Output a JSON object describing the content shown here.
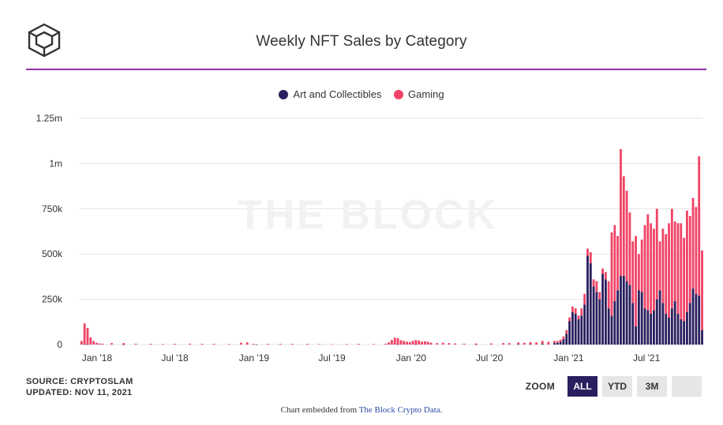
{
  "title": "Weekly NFT Sales by Category",
  "watermark": "THE BLOCK",
  "logo_icon": "cube-logo-icon",
  "source": {
    "source_line": "SOURCE: CRYPTOSLAM",
    "updated_line": "UPDATED: NOV 11, 2021"
  },
  "zoom": {
    "label": "ZOOM",
    "buttons": [
      "ALL",
      "YTD",
      "3M",
      ""
    ],
    "active": "ALL"
  },
  "embed": {
    "prefix": "Chart embedded from ",
    "link_text": "The Block Crypto Data",
    "suffix": "."
  },
  "colors": {
    "art": "#2a1f5e",
    "gaming": "#ef4466",
    "rule": "#8e2fa8",
    "grid": "#e6e6e6"
  },
  "chart_data": {
    "type": "bar",
    "stacked": true,
    "title": "Weekly NFT Sales by Category",
    "legend_position": "top-center",
    "grid": true,
    "x_range": [
      "2017-11-20",
      "2021-11-08"
    ],
    "ylim": [
      0,
      1250000
    ],
    "y_ticks": [
      0,
      250000,
      500000,
      750000,
      1000000,
      1250000
    ],
    "y_tick_labels": [
      "0",
      "250k",
      "500k",
      "750k",
      "1m",
      "1.25m"
    ],
    "x_ticks": [
      "2018-01-01",
      "2018-07-01",
      "2019-01-01",
      "2019-07-01",
      "2020-01-01",
      "2020-07-01",
      "2021-01-01",
      "2021-07-01"
    ],
    "x_tick_labels": [
      "Jan '18",
      "Jul '18",
      "Jan '19",
      "Jul '19",
      "Jan '20",
      "Jul '20",
      "Jan '21",
      "Jul '21"
    ],
    "series": [
      {
        "name": "Art and Collectibles",
        "color": "#2a1f5e",
        "points": [
          [
            "2017-11-27",
            0
          ],
          [
            "2017-12-04",
            2000
          ],
          [
            "2017-12-11",
            1000
          ],
          [
            "2018-03-05",
            500
          ],
          [
            "2019-01-07",
            500
          ],
          [
            "2019-12-02",
            1000
          ],
          [
            "2020-01-13",
            1000
          ],
          [
            "2020-06-01",
            800
          ],
          [
            "2020-09-07",
            1500
          ],
          [
            "2020-10-05",
            2000
          ],
          [
            "2020-11-02",
            5000
          ],
          [
            "2020-11-30",
            8000
          ],
          [
            "2020-12-07",
            10000
          ],
          [
            "2020-12-14",
            15000
          ],
          [
            "2020-12-21",
            30000
          ],
          [
            "2020-12-28",
            60000
          ],
          [
            "2021-01-04",
            130000
          ],
          [
            "2021-01-11",
            180000
          ],
          [
            "2021-01-18",
            170000
          ],
          [
            "2021-01-25",
            140000
          ],
          [
            "2021-02-01",
            160000
          ],
          [
            "2021-02-08",
            220000
          ],
          [
            "2021-02-15",
            490000
          ],
          [
            "2021-02-22",
            450000
          ],
          [
            "2021-03-01",
            320000
          ],
          [
            "2021-03-08",
            290000
          ],
          [
            "2021-03-15",
            250000
          ],
          [
            "2021-03-22",
            390000
          ],
          [
            "2021-03-29",
            360000
          ],
          [
            "2021-04-05",
            200000
          ],
          [
            "2021-04-12",
            160000
          ],
          [
            "2021-04-19",
            240000
          ],
          [
            "2021-04-26",
            300000
          ],
          [
            "2021-05-03",
            380000
          ],
          [
            "2021-05-10",
            380000
          ],
          [
            "2021-05-17",
            350000
          ],
          [
            "2021-05-24",
            330000
          ],
          [
            "2021-05-31",
            230000
          ],
          [
            "2021-06-07",
            100000
          ],
          [
            "2021-06-14",
            300000
          ],
          [
            "2021-06-21",
            290000
          ],
          [
            "2021-06-28",
            200000
          ],
          [
            "2021-07-05",
            190000
          ],
          [
            "2021-07-12",
            170000
          ],
          [
            "2021-07-19",
            190000
          ],
          [
            "2021-07-26",
            250000
          ],
          [
            "2021-08-02",
            300000
          ],
          [
            "2021-08-09",
            230000
          ],
          [
            "2021-08-16",
            170000
          ],
          [
            "2021-08-23",
            150000
          ],
          [
            "2021-08-30",
            200000
          ],
          [
            "2021-09-06",
            240000
          ],
          [
            "2021-09-13",
            170000
          ],
          [
            "2021-09-20",
            140000
          ],
          [
            "2021-09-27",
            130000
          ],
          [
            "2021-10-04",
            180000
          ],
          [
            "2021-10-11",
            230000
          ],
          [
            "2021-10-18",
            310000
          ],
          [
            "2021-10-25",
            280000
          ],
          [
            "2021-11-01",
            270000
          ],
          [
            "2021-11-08",
            80000
          ]
        ]
      },
      {
        "name": "Gaming",
        "color": "#ef4466",
        "points": [
          [
            "2017-11-27",
            20000
          ],
          [
            "2017-12-04",
            115000
          ],
          [
            "2017-12-11",
            90000
          ],
          [
            "2017-12-18",
            40000
          ],
          [
            "2017-12-25",
            20000
          ],
          [
            "2018-01-01",
            10000
          ],
          [
            "2018-01-08",
            6000
          ],
          [
            "2018-01-15",
            5000
          ],
          [
            "2018-02-05",
            8000
          ],
          [
            "2018-03-05",
            8000
          ],
          [
            "2018-04-02",
            5000
          ],
          [
            "2018-05-07",
            4000
          ],
          [
            "2018-06-04",
            3000
          ],
          [
            "2018-07-02",
            4000
          ],
          [
            "2018-08-06",
            5000
          ],
          [
            "2018-09-03",
            4000
          ],
          [
            "2018-10-01",
            4000
          ],
          [
            "2018-11-05",
            3000
          ],
          [
            "2018-12-03",
            10000
          ],
          [
            "2018-12-17",
            12000
          ],
          [
            "2018-12-31",
            4000
          ],
          [
            "2019-02-04",
            4000
          ],
          [
            "2019-03-04",
            4000
          ],
          [
            "2019-04-01",
            4000
          ],
          [
            "2019-05-06",
            4000
          ],
          [
            "2019-06-03",
            3000
          ],
          [
            "2019-07-01",
            2000
          ],
          [
            "2019-08-05",
            3000
          ],
          [
            "2019-09-02",
            4000
          ],
          [
            "2019-10-07",
            3000
          ],
          [
            "2019-11-04",
            5000
          ],
          [
            "2019-11-11",
            12000
          ],
          [
            "2019-11-18",
            25000
          ],
          [
            "2019-11-25",
            38000
          ],
          [
            "2019-12-02",
            34000
          ],
          [
            "2019-12-09",
            24000
          ],
          [
            "2019-12-16",
            20000
          ],
          [
            "2019-12-23",
            16000
          ],
          [
            "2019-12-30",
            14000
          ],
          [
            "2020-01-06",
            20000
          ],
          [
            "2020-01-13",
            24000
          ],
          [
            "2020-01-20",
            22000
          ],
          [
            "2020-01-27",
            16000
          ],
          [
            "2020-02-03",
            18000
          ],
          [
            "2020-02-10",
            16000
          ],
          [
            "2020-02-17",
            10000
          ],
          [
            "2020-03-02",
            8000
          ],
          [
            "2020-03-16",
            10000
          ],
          [
            "2020-03-30",
            8000
          ],
          [
            "2020-04-13",
            6000
          ],
          [
            "2020-05-04",
            5000
          ],
          [
            "2020-06-01",
            5000
          ],
          [
            "2020-07-06",
            6000
          ],
          [
            "2020-08-03",
            8000
          ],
          [
            "2020-08-17",
            8000
          ],
          [
            "2020-09-07",
            10000
          ],
          [
            "2020-09-21",
            10000
          ],
          [
            "2020-10-05",
            12000
          ],
          [
            "2020-10-19",
            12000
          ],
          [
            "2020-11-02",
            15000
          ],
          [
            "2020-11-16",
            15000
          ],
          [
            "2020-11-30",
            12000
          ],
          [
            "2020-12-07",
            10000
          ],
          [
            "2020-12-14",
            12000
          ],
          [
            "2020-12-21",
            15000
          ],
          [
            "2020-12-28",
            20000
          ],
          [
            "2021-01-04",
            20000
          ],
          [
            "2021-01-11",
            30000
          ],
          [
            "2021-01-18",
            30000
          ],
          [
            "2021-01-25",
            20000
          ],
          [
            "2021-02-01",
            40000
          ],
          [
            "2021-02-08",
            60000
          ],
          [
            "2021-02-15",
            40000
          ],
          [
            "2021-02-22",
            60000
          ],
          [
            "2021-03-01",
            40000
          ],
          [
            "2021-03-08",
            60000
          ],
          [
            "2021-03-15",
            40000
          ],
          [
            "2021-03-22",
            30000
          ],
          [
            "2021-03-29",
            40000
          ],
          [
            "2021-04-05",
            150000
          ],
          [
            "2021-04-12",
            460000
          ],
          [
            "2021-04-19",
            420000
          ],
          [
            "2021-04-26",
            300000
          ],
          [
            "2021-05-03",
            700000
          ],
          [
            "2021-05-10",
            550000
          ],
          [
            "2021-05-17",
            500000
          ],
          [
            "2021-05-24",
            400000
          ],
          [
            "2021-05-31",
            340000
          ],
          [
            "2021-06-07",
            500000
          ],
          [
            "2021-06-14",
            200000
          ],
          [
            "2021-06-21",
            290000
          ],
          [
            "2021-06-28",
            460000
          ],
          [
            "2021-07-05",
            530000
          ],
          [
            "2021-07-12",
            500000
          ],
          [
            "2021-07-19",
            450000
          ],
          [
            "2021-07-26",
            500000
          ],
          [
            "2021-08-02",
            270000
          ],
          [
            "2021-08-09",
            410000
          ],
          [
            "2021-08-16",
            440000
          ],
          [
            "2021-08-23",
            520000
          ],
          [
            "2021-08-30",
            550000
          ],
          [
            "2021-09-06",
            440000
          ],
          [
            "2021-09-13",
            500000
          ],
          [
            "2021-09-20",
            530000
          ],
          [
            "2021-09-27",
            460000
          ],
          [
            "2021-10-04",
            560000
          ],
          [
            "2021-10-11",
            480000
          ],
          [
            "2021-10-18",
            500000
          ],
          [
            "2021-10-25",
            480000
          ],
          [
            "2021-11-01",
            770000
          ],
          [
            "2021-11-08",
            440000
          ]
        ]
      }
    ]
  }
}
